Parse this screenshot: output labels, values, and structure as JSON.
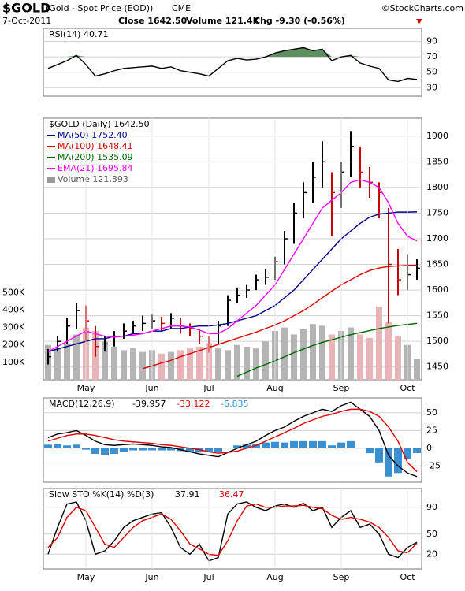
{
  "header": {
    "symbol": "$GOLD",
    "description": "(Gold - Spot Price (EOD))",
    "exchange": "CME",
    "date": "7-Oct-2011",
    "close": "Close 1642.50",
    "volume": "Volume 121.4K",
    "change": "Chg -9.30 (-0.56%)",
    "source": "©StockCharts.com"
  },
  "chart_data": [
    {
      "type": "line",
      "title": "RSI(14) 40.71",
      "ylim": [
        19,
        107
      ],
      "yticks": [
        90,
        70,
        50,
        30
      ],
      "grid": true,
      "fill_level": 70,
      "fill_color": "#5f8f5f",
      "series": [
        {
          "color": "#000000",
          "values": [
            55,
            60,
            65,
            72,
            60,
            45,
            48,
            52,
            55,
            56,
            57,
            58,
            55,
            57,
            52,
            50,
            48,
            45,
            55,
            65,
            68,
            66,
            67,
            70,
            75,
            78,
            80,
            82,
            78,
            80,
            65,
            70,
            72,
            62,
            58,
            55,
            40,
            38,
            42,
            40.71
          ]
        }
      ]
    },
    {
      "type": "ohlc",
      "title": "$GOLD (Daily) 1642.50",
      "up_color": "#000000",
      "down_color": "#cc0000",
      "ylim": [
        1425,
        1935
      ],
      "yticks": [
        1450,
        1500,
        1550,
        1600,
        1650,
        1700,
        1750,
        1800,
        1850,
        1900
      ],
      "grid": true,
      "categories": [
        null,
        null,
        null,
        null,
        "May",
        null,
        null,
        null,
        null,
        null,
        null,
        "Jun",
        null,
        null,
        null,
        null,
        null,
        "Jul",
        null,
        null,
        null,
        null,
        null,
        null,
        "Aug",
        null,
        null,
        null,
        null,
        null,
        null,
        "Sep",
        null,
        null,
        null,
        null,
        null,
        null,
        "Oct",
        null
      ],
      "high": [
        1485,
        1510,
        1545,
        1575,
        1570,
        1530,
        1510,
        1520,
        1535,
        1540,
        1550,
        1552,
        1548,
        1555,
        1545,
        1535,
        1525,
        1510,
        1540,
        1590,
        1605,
        1610,
        1630,
        1640,
        1665,
        1715,
        1770,
        1810,
        1850,
        1890,
        1830,
        1850,
        1910,
        1880,
        1840,
        1810,
        1760,
        1680,
        1670,
        1660
      ],
      "low": [
        1455,
        1480,
        1495,
        1525,
        1500,
        1470,
        1480,
        1490,
        1505,
        1515,
        1520,
        1525,
        1520,
        1525,
        1515,
        1510,
        1495,
        1478,
        1495,
        1530,
        1575,
        1585,
        1600,
        1610,
        1620,
        1650,
        1690,
        1740,
        1770,
        1800,
        1705,
        1760,
        1820,
        1800,
        1780,
        1740,
        1535,
        1590,
        1600,
        1620
      ],
      "close": [
        1470,
        1500,
        1530,
        1560,
        1540,
        1490,
        1495,
        1510,
        1520,
        1530,
        1535,
        1540,
        1535,
        1545,
        1530,
        1525,
        1510,
        1490,
        1530,
        1580,
        1590,
        1600,
        1620,
        1625,
        1655,
        1700,
        1750,
        1790,
        1820,
        1850,
        1790,
        1830,
        1880,
        1830,
        1810,
        1790,
        1650,
        1620,
        1630,
        1642.5
      ],
      "series": [
        {
          "name": "MA(50) 1752.40",
          "color": "#000088",
          "values": [
            1480,
            1485,
            1490,
            1495,
            1500,
            1505,
            1505,
            1510,
            1510,
            1515,
            1515,
            1520,
            1520,
            1525,
            1525,
            1528,
            1530,
            1530,
            1532,
            1535,
            1540,
            1545,
            1550,
            1560,
            1570,
            1585,
            1600,
            1620,
            1640,
            1660,
            1680,
            1700,
            1715,
            1730,
            1742,
            1748,
            1750,
            1752,
            1752,
            1752.4
          ]
        },
        {
          "name": "MA(100) 1648.41",
          "color": "#dd0000",
          "values": [
            null,
            null,
            null,
            null,
            null,
            null,
            null,
            null,
            null,
            null,
            1447,
            1452,
            1458,
            1463,
            1470,
            1476,
            1482,
            1488,
            1494,
            1500,
            1506,
            1512,
            1518,
            1525,
            1532,
            1540,
            1550,
            1560,
            1572,
            1585,
            1598,
            1610,
            1620,
            1630,
            1638,
            1643,
            1646,
            1647,
            1648,
            1648.41
          ]
        },
        {
          "name": "MA(200) 1535.09",
          "color": "#006600",
          "values": [
            null,
            null,
            null,
            null,
            null,
            null,
            null,
            null,
            null,
            null,
            null,
            null,
            null,
            null,
            null,
            null,
            null,
            null,
            null,
            null,
            1432,
            1440,
            1448,
            1455,
            1462,
            1470,
            1478,
            1485,
            1492,
            1498,
            1503,
            1508,
            1513,
            1517,
            1521,
            1525,
            1528,
            1531,
            1533,
            1535.09
          ]
        },
        {
          "name": "EMA(21) 1695.84",
          "color": "#ff00ff",
          "values": [
            1480,
            1490,
            1500,
            1510,
            1520,
            1515,
            1510,
            1508,
            1510,
            1512,
            1515,
            1520,
            1525,
            1530,
            1530,
            1528,
            1522,
            1515,
            1515,
            1525,
            1540,
            1555,
            1570,
            1590,
            1610,
            1640,
            1670,
            1700,
            1730,
            1760,
            1775,
            1790,
            1810,
            1815,
            1810,
            1800,
            1770,
            1730,
            1705,
            1695.84
          ]
        }
      ],
      "volume": {
        "name": "Volume 121,393",
        "up_color": "#b4b4b4",
        "down_color": "#e8b4b8",
        "ylim": [
          0,
          1500000
        ],
        "yticks": [
          {
            "value": 100000,
            "label": "100K"
          },
          {
            "value": 200000,
            "label": "200K"
          },
          {
            "value": 300000,
            "label": "300K"
          },
          {
            "value": 400000,
            "label": "400K"
          },
          {
            "value": 500000,
            "label": "500K"
          }
        ],
        "values": [
          200000,
          180000,
          210000,
          260000,
          300000,
          280000,
          220000,
          190000,
          170000,
          180000,
          160000,
          170000,
          150000,
          160000,
          170000,
          180000,
          190000,
          210000,
          180000,
          170000,
          200000,
          190000,
          180000,
          220000,
          280000,
          300000,
          260000,
          290000,
          320000,
          310000,
          260000,
          280000,
          300000,
          260000,
          240000,
          420000,
          330000,
          250000,
          200000,
          121393
        ]
      }
    },
    {
      "type": "macd",
      "title": "MACD(12,26,9)",
      "ylim": [
        -48,
        71
      ],
      "yticks": [
        50,
        25,
        0,
        -25
      ],
      "grid": true,
      "series": [
        {
          "name": "-39.957",
          "color": "#000000",
          "values": [
            15,
            20,
            22,
            25,
            18,
            10,
            5,
            4,
            5,
            6,
            5,
            4,
            2,
            1,
            -2,
            -5,
            -8,
            -10,
            -12,
            -6,
            0,
            5,
            10,
            18,
            25,
            30,
            38,
            45,
            50,
            55,
            52,
            60,
            65,
            55,
            45,
            25,
            -10,
            -25,
            -35,
            -39.957
          ]
        },
        {
          "name": "-33.122",
          "color": "#dd0000",
          "values": [
            10,
            14,
            18,
            20,
            20,
            18,
            15,
            12,
            10,
            9,
            8,
            7,
            5,
            4,
            2,
            0,
            -2,
            -5,
            -7,
            -6,
            -4,
            0,
            4,
            10,
            16,
            22,
            28,
            35,
            40,
            45,
            48,
            52,
            55,
            55,
            52,
            45,
            30,
            10,
            -20,
            -33.122
          ]
        },
        {
          "name": "-6.835",
          "color": "#3a8fd0",
          "bars": true,
          "values": [
            5,
            6,
            4,
            5,
            -2,
            -8,
            -10,
            -8,
            -5,
            -3,
            -3,
            -3,
            -3,
            -3,
            -4,
            -5,
            -6,
            -5,
            -5,
            0,
            4,
            5,
            6,
            8,
            9,
            8,
            10,
            10,
            10,
            10,
            4,
            8,
            10,
            0,
            -7,
            -20,
            -40,
            -35,
            -15,
            -6.835
          ]
        }
      ]
    },
    {
      "type": "line",
      "title": "Slow STO %K(14) %D(3)",
      "ylim": [
        -2,
        118
      ],
      "yticks": [
        90,
        50,
        20
      ],
      "grid": true,
      "categories_from": 1,
      "series": [
        {
          "name": "37.91",
          "color": "#000000",
          "values": [
            20,
            60,
            95,
            98,
            70,
            20,
            25,
            40,
            60,
            70,
            75,
            80,
            82,
            60,
            30,
            20,
            35,
            10,
            15,
            80,
            95,
            98,
            90,
            85,
            92,
            95,
            90,
            96,
            85,
            90,
            60,
            75,
            85,
            60,
            65,
            50,
            20,
            15,
            30,
            37.91
          ]
        },
        {
          "name": "36.47",
          "color": "#dd0000",
          "values": [
            30,
            45,
            75,
            90,
            85,
            60,
            35,
            30,
            45,
            60,
            70,
            75,
            80,
            72,
            55,
            35,
            28,
            20,
            18,
            40,
            70,
            92,
            95,
            90,
            90,
            92,
            92,
            93,
            90,
            88,
            78,
            72,
            75,
            72,
            68,
            60,
            45,
            25,
            22,
            36.47
          ]
        }
      ]
    }
  ]
}
